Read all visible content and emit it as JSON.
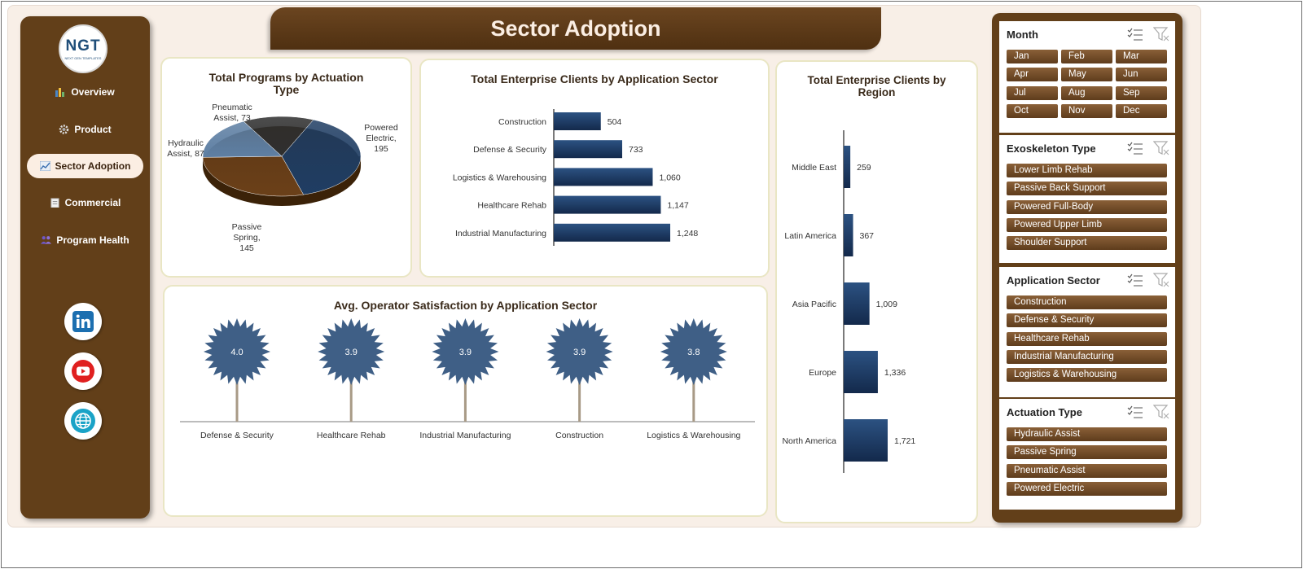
{
  "title": "Sector Adoption",
  "logo": {
    "mark": "NGT",
    "subtitle": "NEXT GEN TEMPLATES"
  },
  "nav": [
    {
      "label": "Overview",
      "icon": "bar-chart-icon"
    },
    {
      "label": "Product",
      "icon": "gear-icon"
    },
    {
      "label": "Sector Adoption",
      "icon": "line-chart-icon",
      "active": true
    },
    {
      "label": "Commercial",
      "icon": "clipboard-icon"
    },
    {
      "label": "Program Health",
      "icon": "people-icon"
    }
  ],
  "social": [
    "linkedin-icon",
    "youtube-icon",
    "globe-icon"
  ],
  "charts": {
    "pie": {
      "title_line1": "Total Programs by Actuation",
      "title_line2": "Type",
      "labels": [
        {
          "name": "Pneumatic",
          "name2": "Assist, 73"
        },
        {
          "name": "Powered",
          "name2": "Electric,",
          "name3": "195"
        },
        {
          "name": "Hydraulic",
          "name2": "Assist, 87"
        },
        {
          "name": "Passive",
          "name2": "Spring,",
          "name3": "145"
        }
      ]
    },
    "sector": {
      "title": "Total Enterprise Clients by Application Sector",
      "value_labels": [
        "504",
        "733",
        "1,060",
        "1,147",
        "1,248"
      ]
    },
    "region": {
      "title_line1": "Total Enterprise Clients by",
      "title_line2": "Region",
      "value_labels": [
        "259",
        "367",
        "1,009",
        "1,336",
        "1,721"
      ]
    },
    "satisfaction": {
      "title": "Avg. Operator Satisfaction by Application Sector",
      "value_labels": [
        "4.0",
        "3.9",
        "3.9",
        "3.9",
        "3.8"
      ]
    }
  },
  "chart_data": [
    {
      "type": "pie",
      "title": "Total Programs by Actuation Type",
      "categories": [
        "Pneumatic Assist",
        "Powered Electric",
        "Passive Spring",
        "Hydraulic Assist"
      ],
      "values": [
        73,
        195,
        145,
        87
      ],
      "colors": [
        "#2f2f2f",
        "#1f3d63",
        "#6b4019",
        "#5e7fa3"
      ]
    },
    {
      "type": "bar",
      "orientation": "horizontal",
      "title": "Total Enterprise Clients by Application Sector",
      "categories": [
        "Construction",
        "Defense & Security",
        "Logistics & Warehousing",
        "Healthcare Rehab",
        "Industrial Manufacturing"
      ],
      "values": [
        504,
        733,
        1060,
        1147,
        1248
      ],
      "color": "#1f3d63"
    },
    {
      "type": "bar",
      "orientation": "horizontal",
      "title": "Total Enterprise Clients by Region",
      "categories": [
        "Middle East",
        "Latin America",
        "Asia Pacific",
        "Europe",
        "North America"
      ],
      "values": [
        259,
        367,
        1009,
        1336,
        1721
      ],
      "color": "#1f3d63"
    },
    {
      "type": "scatter",
      "title": "Avg. Operator Satisfaction by Application Sector",
      "categories": [
        "Defense & Security",
        "Healthcare Rehab",
        "Industrial Manufacturing",
        "Construction",
        "Logistics & Warehousing"
      ],
      "values": [
        4.0,
        3.9,
        3.9,
        3.9,
        3.8
      ],
      "color": "#3f5f86"
    }
  ],
  "slicers": [
    {
      "title": "Month",
      "items": [
        "Jan",
        "Feb",
        "Mar",
        "Apr",
        "May",
        "Jun",
        "Jul",
        "Aug",
        "Sep",
        "Oct",
        "Nov",
        "Dec"
      ]
    },
    {
      "title": "Exoskeleton Type",
      "items": [
        "Lower Limb Rehab",
        "Passive Back Support",
        "Powered Full-Body",
        "Powered Upper Limb",
        "Shoulder Support"
      ]
    },
    {
      "title": "Application Sector",
      "items": [
        "Construction",
        "Defense & Security",
        "Healthcare Rehab",
        "Industrial Manufacturing",
        "Logistics & Warehousing"
      ]
    },
    {
      "title": "Actuation Type",
      "items": [
        "Hydraulic Assist",
        "Passive Spring",
        "Pneumatic Assist",
        "Powered Electric"
      ]
    }
  ]
}
